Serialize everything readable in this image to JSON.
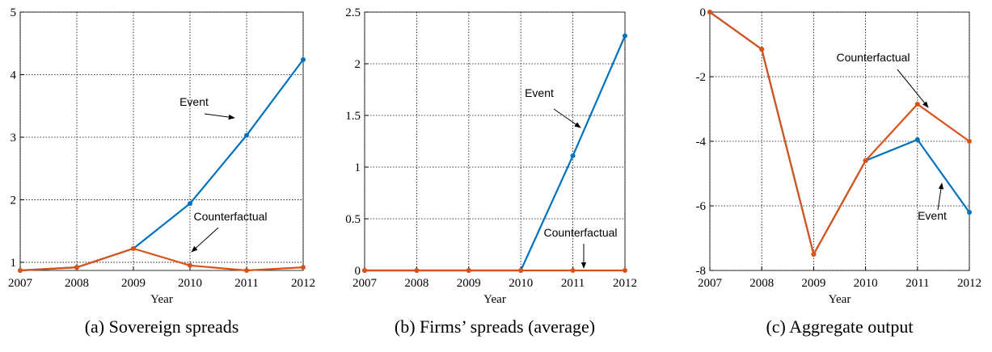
{
  "chart_data": [
    {
      "type": "line",
      "caption": "(a) Sovereign spreads",
      "xlabel": "Year",
      "x": [
        2007,
        2008,
        2009,
        2010,
        2011,
        2012
      ],
      "xlim": [
        2007,
        2012
      ],
      "xticks": [
        2007,
        2008,
        2009,
        2010,
        2011,
        2012
      ],
      "ylim": [
        0.87,
        5
      ],
      "yticks": [
        1,
        2,
        3,
        4,
        5
      ],
      "grid": true,
      "series": [
        {
          "name": "Event",
          "color": "#0072bd",
          "values": [
            0.87,
            0.92,
            1.22,
            1.94,
            3.03,
            4.24
          ]
        },
        {
          "name": "Counterfactual",
          "color": "#d95319",
          "values": [
            0.87,
            0.92,
            1.22,
            0.95,
            0.87,
            0.92
          ]
        }
      ],
      "annotations": [
        "Event",
        "Counterfactual"
      ]
    },
    {
      "type": "line",
      "caption": "(b) Firms’ spreads (average)",
      "xlabel": "Year",
      "x": [
        2007,
        2008,
        2009,
        2010,
        2011,
        2012
      ],
      "xlim": [
        2007,
        2012
      ],
      "xticks": [
        2007,
        2008,
        2009,
        2010,
        2011,
        2012
      ],
      "ylim": [
        0,
        2.5
      ],
      "yticks": [
        0,
        0.5,
        1,
        1.5,
        2,
        2.5
      ],
      "grid": true,
      "series": [
        {
          "name": "Event",
          "color": "#0072bd",
          "values": [
            0,
            0,
            0,
            0,
            1.11,
            2.27
          ]
        },
        {
          "name": "Counterfactual",
          "color": "#d95319",
          "values": [
            0,
            0,
            0,
            0,
            0,
            0
          ]
        }
      ],
      "annotations": [
        "Event",
        "Counterfactual"
      ]
    },
    {
      "type": "line",
      "caption": "(c) Aggregate output",
      "xlabel": "Year",
      "x": [
        2007,
        2008,
        2009,
        2010,
        2011,
        2012
      ],
      "xlim": [
        2007,
        2012
      ],
      "xticks": [
        2007,
        2008,
        2009,
        2010,
        2011,
        2012
      ],
      "ylim": [
        -8,
        0
      ],
      "yticks": [
        -8,
        -6,
        -4,
        -2,
        0
      ],
      "grid": true,
      "series": [
        {
          "name": "Event",
          "color": "#0072bd",
          "values": [
            0,
            -1.15,
            -7.5,
            -4.6,
            -3.95,
            -6.2
          ]
        },
        {
          "name": "Counterfactual",
          "color": "#d95319",
          "values": [
            0,
            -1.15,
            -7.5,
            -4.6,
            -2.85,
            -4.0
          ]
        }
      ],
      "annotations": [
        "Counterfactual",
        "Event"
      ]
    }
  ]
}
